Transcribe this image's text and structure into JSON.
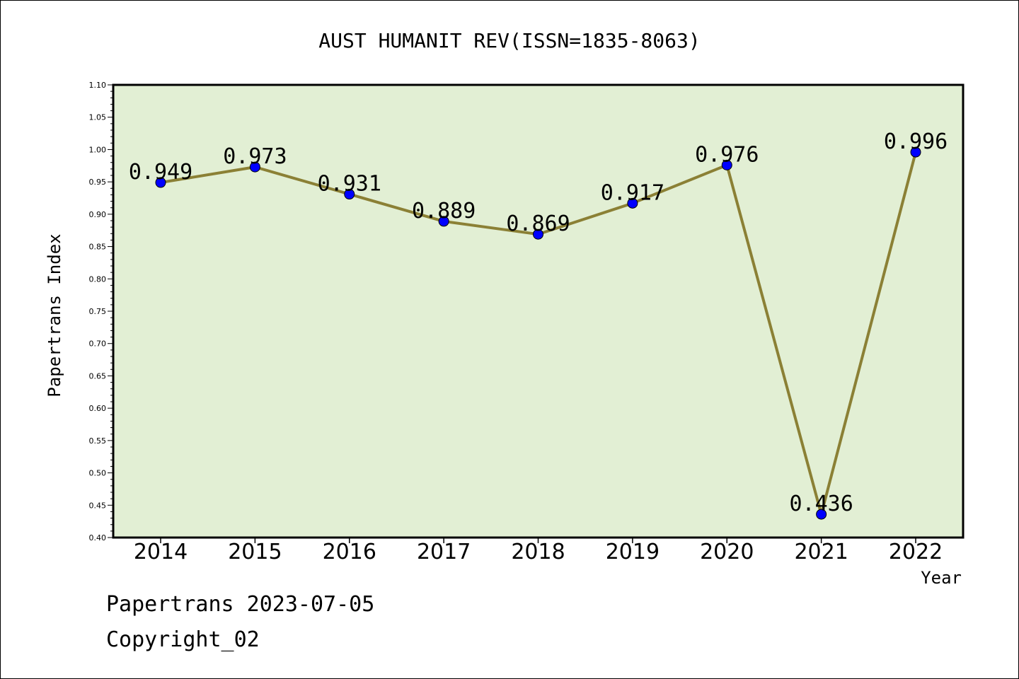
{
  "chart_data": {
    "type": "line",
    "title": "AUST HUMANIT REV(ISSN=1835-8063)",
    "xlabel": "Year",
    "ylabel": "Papertrans Index",
    "categories": [
      "2014",
      "2015",
      "2016",
      "2017",
      "2018",
      "2019",
      "2020",
      "2021",
      "2022"
    ],
    "values": [
      0.949,
      0.973,
      0.931,
      0.889,
      0.869,
      0.917,
      0.976,
      0.436,
      0.996
    ],
    "data_labels": [
      "0.949",
      "0.973",
      "0.931",
      "0.889",
      "0.869",
      "0.917",
      "0.976",
      "0.436",
      "0.996"
    ],
    "ylim": [
      0.4,
      1.1
    ],
    "y_ticks": [
      "0.40",
      "0.45",
      "0.50",
      "0.55",
      "0.60",
      "0.65",
      "0.70",
      "0.75",
      "0.80",
      "0.85",
      "0.90",
      "0.95",
      "1.00",
      "1.05",
      "1.10"
    ],
    "grid": false,
    "legend": "none",
    "colors": {
      "plot_background": "#e2efd4",
      "line": "#8b8035",
      "marker": "#0000ff"
    }
  },
  "footer": {
    "date_text": "Papertrans 2023-07-05",
    "copyright_text": "Copyright_02"
  }
}
